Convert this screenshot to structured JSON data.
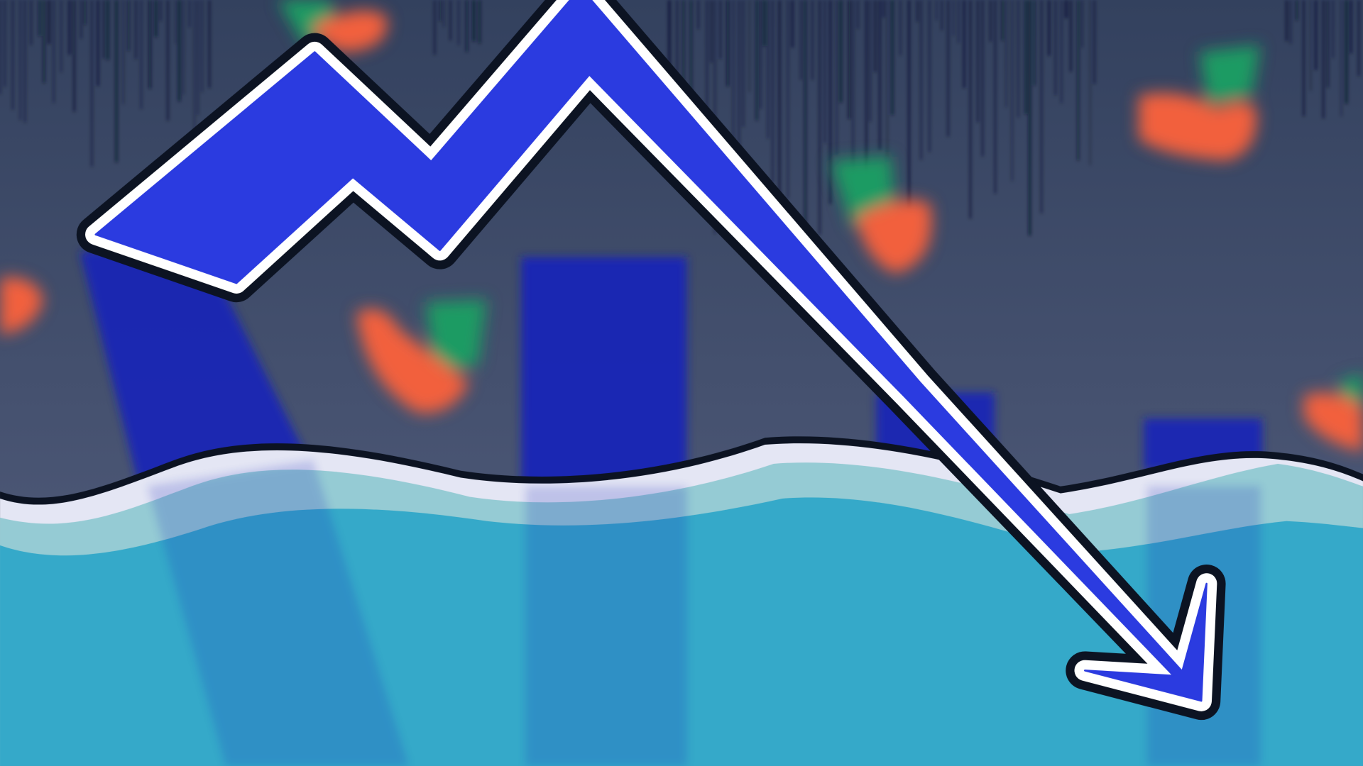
{
  "illustration": {
    "background_top": "#33415e",
    "background_bottom": "#56607f",
    "rain_color": "#0e1628",
    "bar_color": "#1424b8",
    "candle_up_color": "#1f9b63",
    "candle_down_color": "#f2603c",
    "water_light_color": "#8ec9d0",
    "water_dark_color": "#2fa6c8",
    "foam_color": "#e4e6f4",
    "arrow_fill_color": "#2b3be0",
    "arrow_outline_color": "#0c1322",
    "arrow_border_color": "#ffffff",
    "arrow_direction": "down"
  }
}
